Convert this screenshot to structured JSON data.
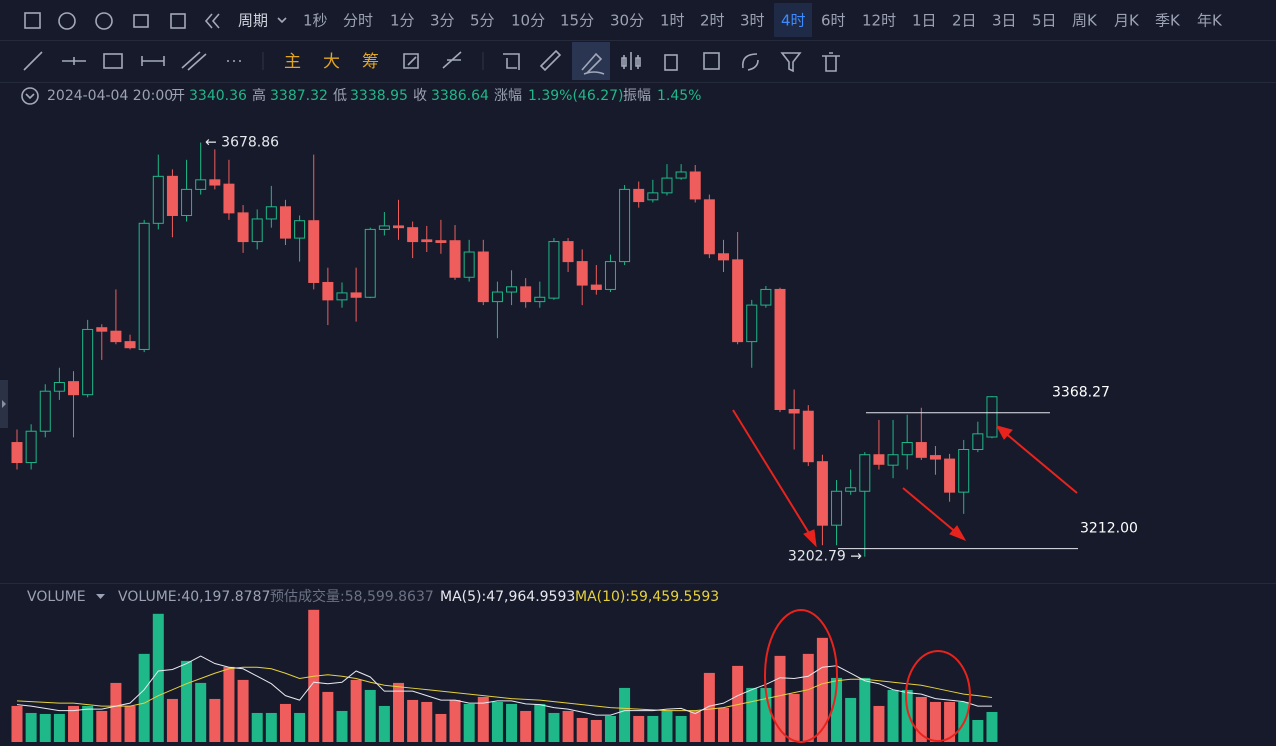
{
  "toolbar": {
    "periods": [
      "周期",
      "1秒",
      "分时",
      "1分",
      "3分",
      "5分",
      "10分",
      "15分",
      "30分",
      "1时",
      "2时",
      "3时",
      "4时",
      "6时",
      "12时",
      "1日",
      "2日",
      "3日",
      "5日",
      "周K",
      "月K",
      "季K",
      "年K"
    ],
    "active": "4时",
    "tools": [
      "主",
      "大",
      "筹"
    ]
  },
  "info": {
    "datetime": "2024-04-04 20:00",
    "labels": [
      "开",
      "高",
      "低",
      "收"
    ],
    "change_label": "涨幅",
    "change": "1.39%(46.27)",
    "amplitude_label": "振幅",
    "amplitude": "1.45%"
  },
  "volume_legend": {
    "title": "VOLUME",
    "volume": "VOLUME:40,197.8787",
    "estimate": "预估成交量:58,599.8637",
    "ma5": "MA(5):47,964.9593",
    "ma10": "MA(10):59,459.5593"
  },
  "chart_data": {
    "type": "candlestick",
    "up_color": "#1fb888",
    "down_color": "#ef5e5c",
    "ma5_color": "#e8e8f0",
    "ma10_color": "#e6d13c",
    "ylim": [
      3176,
      3722
    ],
    "volume_ylim": [
      0,
      190000
    ],
    "open": [
      3334,
      3311,
      3347,
      3393,
      3404,
      3389,
      3466,
      3462,
      3450,
      3441,
      3586,
      3640,
      3595,
      3625,
      3636,
      3631,
      3598,
      3565,
      3591,
      3605,
      3569,
      3589,
      3518,
      3498,
      3506,
      3501,
      3579,
      3583,
      3581,
      3567,
      3566,
      3566,
      3524,
      3553,
      3496,
      3507,
      3513,
      3496,
      3500,
      3565,
      3542,
      3515,
      3510,
      3542,
      3625,
      3613,
      3621,
      3638,
      3645,
      3613,
      3551,
      3544,
      3450,
      3492,
      3510,
      3372,
      3370,
      3312,
      3239,
      3278,
      3278,
      3320,
      3308,
      3320,
      3334,
      3319,
      3315,
      3277,
      3326,
      3340.36
    ],
    "close": [
      3311,
      3347,
      3393,
      3403,
      3389,
      3464,
      3462,
      3450,
      3443,
      3586,
      3640,
      3595,
      3625,
      3636,
      3630,
      3598,
      3565,
      3591,
      3605,
      3569,
      3589,
      3518,
      3498,
      3506,
      3501,
      3579,
      3583,
      3581,
      3565,
      3565,
      3564,
      3524,
      3553,
      3496,
      3507,
      3513,
      3496,
      3501,
      3565,
      3542,
      3515,
      3510,
      3542,
      3625,
      3611,
      3621,
      3638,
      3645,
      3614,
      3551,
      3544,
      3450,
      3492,
      3510,
      3372,
      3368,
      3312,
      3239,
      3278,
      3282,
      3320,
      3309,
      3320,
      3334,
      3317,
      3315,
      3277,
      3326,
      3344,
      3386.64
    ],
    "high": [
      3349,
      3355,
      3401,
      3420,
      3416,
      3475,
      3470,
      3510,
      3458,
      3590,
      3665,
      3648,
      3659,
      3678.86,
      3671,
      3659,
      3607,
      3602,
      3629,
      3613,
      3595,
      3665,
      3535,
      3518,
      3535,
      3581,
      3599,
      3613,
      3588,
      3583,
      3590,
      3584,
      3567,
      3567,
      3519,
      3532,
      3523,
      3519,
      3569,
      3569,
      3556,
      3538,
      3550,
      3630,
      3634,
      3636,
      3654,
      3654,
      3653,
      3619,
      3567,
      3576,
      3498,
      3514,
      3512,
      3395,
      3377,
      3320,
      3291,
      3303,
      3323,
      3360,
      3360,
      3366,
      3374,
      3330,
      3321,
      3337,
      3358,
      3387.32
    ],
    "low": [
      3303,
      3303,
      3340,
      3383,
      3340,
      3386,
      3429,
      3447,
      3441,
      3438,
      3579,
      3570,
      3588,
      3619,
      3625,
      3590,
      3552,
      3556,
      3581,
      3561,
      3542,
      3510,
      3469,
      3489,
      3473,
      3500,
      3572,
      3567,
      3546,
      3553,
      3551,
      3521,
      3519,
      3492,
      3454,
      3492,
      3489,
      3489,
      3498,
      3530,
      3492,
      3504,
      3507,
      3538,
      3604,
      3610,
      3618,
      3636,
      3610,
      3546,
      3530,
      3447,
      3420,
      3489,
      3369,
      3326,
      3307,
      3216,
      3216,
      3274,
      3202.79,
      3303,
      3293,
      3303,
      3314,
      3297,
      3266,
      3252,
      3323,
      3338.95
    ],
    "volume": [
      48240,
      38860,
      37520,
      37520,
      48240,
      48240,
      41540,
      79060,
      48240,
      117920,
      171520,
      57620,
      108540,
      79060,
      57620,
      100500,
      83080,
      38860,
      38860,
      50920,
      38860,
      176880,
      67000,
      41540,
      83080,
      69680,
      48240,
      79060,
      56280,
      53600,
      37520,
      56280,
      50920,
      60300,
      53600,
      50920,
      41540,
      50920,
      38860,
      41540,
      32160,
      29480,
      34840,
      72360,
      34840,
      34840,
      41540,
      34840,
      41540,
      92460,
      45560,
      101840,
      72360,
      72360,
      115240,
      64320,
      117920,
      139360,
      85760,
      58960,
      85760,
      48240,
      69680,
      69680,
      60300,
      53600,
      53600,
      53600,
      29480,
      40197.8787
    ],
    "ma5": [
      50000,
      48000,
      45000,
      42000,
      42000,
      44000,
      44000,
      48000,
      52000,
      70000,
      95000,
      97000,
      105000,
      115000,
      105000,
      100000,
      98000,
      88000,
      78000,
      62000,
      56000,
      80000,
      78000,
      80000,
      95000,
      87000,
      68000,
      68000,
      68000,
      62000,
      56000,
      56000,
      52000,
      52000,
      55000,
      55000,
      51000,
      50000,
      46000,
      44000,
      40000,
      36000,
      36000,
      42000,
      42000,
      42000,
      44000,
      45000,
      38000,
      48000,
      52000,
      62000,
      70000,
      77000,
      86000,
      85000,
      88000,
      100000,
      102000,
      92000,
      82000,
      78000,
      70000,
      66000,
      64000,
      58000,
      56000,
      54000,
      48000,
      47964.9593
    ],
    "ma10": [
      55000,
      54000,
      53000,
      52000,
      52000,
      50000,
      48000,
      48000,
      48000,
      52000,
      62000,
      70000,
      78000,
      85000,
      92000,
      98000,
      100000,
      100000,
      98000,
      92000,
      85000,
      88000,
      90000,
      88000,
      85000,
      80000,
      76000,
      74000,
      72000,
      70000,
      68000,
      66000,
      64000,
      62000,
      60000,
      58000,
      57000,
      56000,
      54000,
      52000,
      50000,
      48000,
      46000,
      45000,
      44000,
      43000,
      42000,
      42000,
      42000,
      44000,
      46000,
      50000,
      54000,
      58000,
      62000,
      66000,
      70000,
      78000,
      82000,
      84000,
      84000,
      82000,
      80000,
      78000,
      76000,
      72000,
      68000,
      64000,
      62000,
      59459.5593
    ],
    "annotations": [
      {
        "value": 3678.86,
        "label": "← 3678.86"
      },
      {
        "value": 3202.79,
        "label": "3202.79 →"
      }
    ],
    "levels": [
      {
        "value": 3368.27,
        "label": "3368.27"
      },
      {
        "value": 3212,
        "label": "3212.00"
      }
    ]
  }
}
